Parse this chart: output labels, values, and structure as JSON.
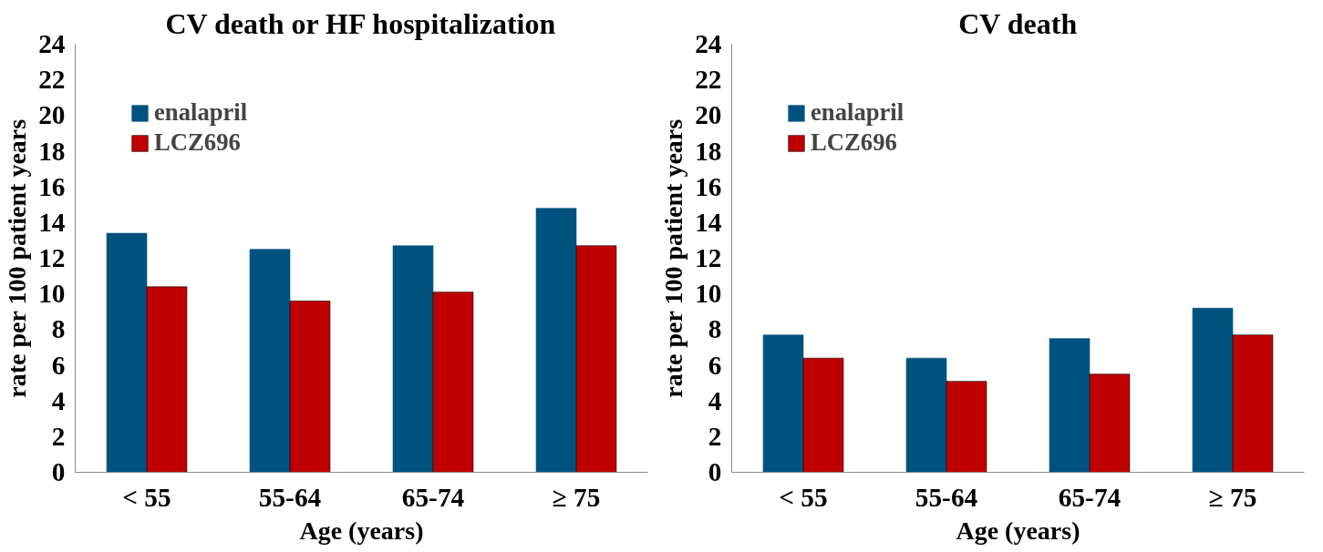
{
  "chart_data": [
    {
      "type": "bar",
      "title": "CV death or HF hospitalization",
      "xlabel": "Age (years)",
      "ylabel": "rate per 100 patient years",
      "categories": [
        "< 55",
        "55-64",
        "65-74",
        "≥ 75"
      ],
      "series": [
        {
          "name": "enalapril",
          "color": "#00527e",
          "values": [
            13.4,
            12.5,
            12.7,
            14.8
          ]
        },
        {
          "name": "LCZ696",
          "color": "#c00000",
          "values": [
            10.4,
            9.6,
            10.1,
            12.7
          ]
        }
      ],
      "ylim": [
        0,
        24
      ],
      "yticks": [
        0,
        2,
        4,
        6,
        8,
        10,
        12,
        14,
        16,
        18,
        20,
        22,
        24
      ],
      "grid": false,
      "legend": "top left"
    },
    {
      "type": "bar",
      "title": "CV death",
      "xlabel": "Age (years)",
      "ylabel": "rate per 100 patient years",
      "categories": [
        "< 55",
        "55-64",
        "65-74",
        "≥ 75"
      ],
      "series": [
        {
          "name": "enalapril",
          "color": "#00527e",
          "values": [
            7.7,
            6.4,
            7.5,
            9.2
          ]
        },
        {
          "name": "LCZ696",
          "color": "#c00000",
          "values": [
            6.4,
            5.1,
            5.5,
            7.7
          ]
        }
      ],
      "ylim": [
        0,
        24
      ],
      "yticks": [
        0,
        2,
        4,
        6,
        8,
        10,
        12,
        14,
        16,
        18,
        20,
        22,
        24
      ],
      "grid": false,
      "legend": "top left"
    }
  ]
}
